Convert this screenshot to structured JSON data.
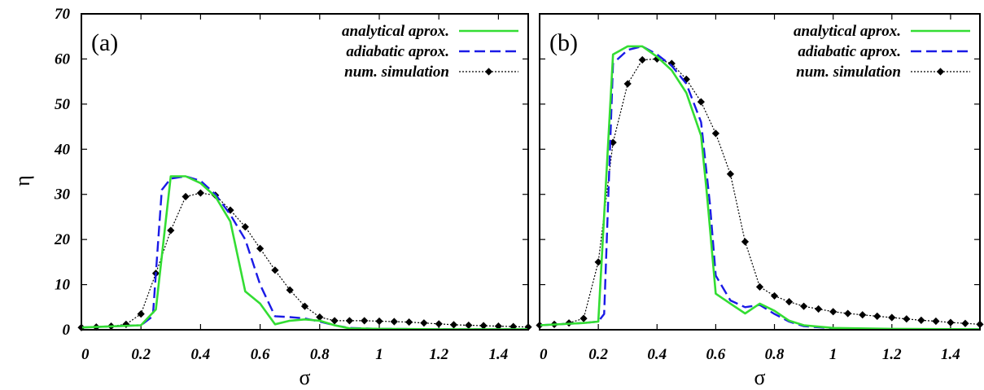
{
  "figure": {
    "ylabel": "η",
    "xlabel": "σ",
    "colors": {
      "analytical": "#33dd33",
      "adiabatic": "#1a1ae6",
      "simulation": "#000000"
    }
  },
  "chart_data": [
    {
      "type": "line",
      "panel_label": "(a)",
      "xlabel": "σ",
      "ylabel": "η",
      "xlim": [
        0,
        1.5
      ],
      "ylim": [
        0,
        70
      ],
      "x_ticks": [
        0,
        0.2,
        0.4,
        0.6,
        0.8,
        1,
        1.2,
        1.4
      ],
      "x_tick_labels": [
        "0",
        "0.2",
        "0.4",
        "0.6",
        "0.8",
        "1",
        "1.2",
        "1.4"
      ],
      "y_ticks": [
        0,
        10,
        20,
        30,
        40,
        50,
        60,
        70
      ],
      "y_tick_labels": [
        "0",
        "10",
        "20",
        "30",
        "40",
        "50",
        "60",
        "70"
      ],
      "grid": false,
      "legend_position": "top-right",
      "series": [
        {
          "name": "analytical aprox.",
          "style": "solid",
          "color": "#33dd33",
          "x": [
            0,
            0.2,
            0.25,
            0.3,
            0.35,
            0.4,
            0.45,
            0.5,
            0.55,
            0.6,
            0.65,
            0.7,
            0.75,
            0.8,
            0.85,
            0.9,
            1.0,
            1.2,
            1.5
          ],
          "y": [
            0.5,
            1.0,
            4.5,
            34.0,
            34.0,
            32.5,
            29.5,
            24.0,
            8.5,
            5.8,
            1.2,
            2.0,
            2.3,
            2.0,
            1.0,
            0.3,
            0.2,
            0.1,
            0.1
          ]
        },
        {
          "name": "adiabatic aprox.",
          "style": "dashed",
          "color": "#1a1ae6",
          "x": [
            0,
            0.2,
            0.24,
            0.27,
            0.3,
            0.35,
            0.4,
            0.45,
            0.5,
            0.55,
            0.6,
            0.65,
            0.7,
            0.75,
            0.8,
            0.85,
            0.9,
            1.0,
            1.2,
            1.5
          ],
          "y": [
            0.5,
            1.0,
            3.0,
            31.0,
            33.5,
            34.0,
            33.0,
            30.0,
            25.5,
            20.0,
            10.0,
            3.0,
            2.8,
            2.5,
            1.8,
            1.0,
            0.4,
            0.2,
            0.1,
            0.1
          ]
        },
        {
          "name": "num. simulation",
          "style": "dotted",
          "color": "#000000",
          "markers": "diamond",
          "x": [
            0,
            0.05,
            0.1,
            0.15,
            0.2,
            0.25,
            0.3,
            0.35,
            0.4,
            0.45,
            0.5,
            0.55,
            0.6,
            0.65,
            0.7,
            0.75,
            0.8,
            0.85,
            0.9,
            0.95,
            1.0,
            1.05,
            1.1,
            1.15,
            1.2,
            1.25,
            1.3,
            1.35,
            1.4,
            1.45,
            1.5
          ],
          "y": [
            0.5,
            0.6,
            0.8,
            1.2,
            3.5,
            12.5,
            22.0,
            29.5,
            30.3,
            29.8,
            26.5,
            22.8,
            18.0,
            13.2,
            8.8,
            5.2,
            2.8,
            2.0,
            2.0,
            2.0,
            1.9,
            1.8,
            1.7,
            1.5,
            1.3,
            1.1,
            1.0,
            0.9,
            0.8,
            0.7,
            0.6
          ]
        }
      ]
    },
    {
      "type": "line",
      "panel_label": "(b)",
      "xlabel": "σ",
      "ylabel": "η",
      "xlim": [
        0,
        1.5
      ],
      "ylim": [
        0,
        70
      ],
      "x_ticks": [
        0,
        0.2,
        0.4,
        0.6,
        0.8,
        1,
        1.2,
        1.4
      ],
      "x_tick_labels": [
        "0",
        "0.2",
        "0.4",
        "0.6",
        "0.8",
        "1",
        "1.2",
        "1.4"
      ],
      "y_ticks": [
        0,
        10,
        20,
        30,
        40,
        50,
        60,
        70
      ],
      "y_tick_labels": [
        "0",
        "10",
        "20",
        "30",
        "40",
        "50",
        "60",
        "70"
      ],
      "grid": false,
      "legend_position": "top-right",
      "series": [
        {
          "name": "analytical aprox.",
          "style": "solid",
          "color": "#33dd33",
          "x": [
            0,
            0.15,
            0.2,
            0.25,
            0.3,
            0.35,
            0.4,
            0.45,
            0.5,
            0.55,
            0.57,
            0.6,
            0.65,
            0.7,
            0.75,
            0.8,
            0.85,
            0.9,
            1.0,
            1.2,
            1.5
          ],
          "y": [
            1.0,
            1.5,
            1.8,
            61.0,
            62.8,
            62.8,
            60.5,
            57.5,
            52.5,
            43.0,
            30.0,
            8.0,
            5.8,
            3.6,
            5.8,
            4.2,
            2.0,
            1.0,
            0.4,
            0.2,
            0.1
          ]
        },
        {
          "name": "adiabatic aprox.",
          "style": "dashed",
          "color": "#1a1ae6",
          "x": [
            0,
            0.15,
            0.2,
            0.22,
            0.25,
            0.3,
            0.35,
            0.4,
            0.45,
            0.5,
            0.55,
            0.58,
            0.6,
            0.65,
            0.7,
            0.75,
            0.8,
            0.85,
            0.9,
            1.0,
            1.2,
            1.5
          ],
          "y": [
            1.0,
            1.5,
            1.8,
            3.5,
            59.0,
            62.0,
            62.8,
            61.0,
            58.5,
            54.5,
            46.0,
            28.0,
            12.0,
            6.5,
            5.0,
            5.5,
            3.5,
            1.8,
            0.8,
            0.3,
            0.1,
            0.1
          ]
        },
        {
          "name": "num. simulation",
          "style": "dotted",
          "color": "#000000",
          "markers": "diamond",
          "x": [
            0,
            0.05,
            0.1,
            0.15,
            0.2,
            0.25,
            0.3,
            0.35,
            0.4,
            0.45,
            0.5,
            0.55,
            0.6,
            0.65,
            0.7,
            0.75,
            0.8,
            0.85,
            0.9,
            0.95,
            1.0,
            1.05,
            1.1,
            1.15,
            1.2,
            1.25,
            1.3,
            1.35,
            1.4,
            1.45,
            1.5
          ],
          "y": [
            1.0,
            1.2,
            1.5,
            2.5,
            15.0,
            41.5,
            54.5,
            59.8,
            60.0,
            59.0,
            55.5,
            50.5,
            43.5,
            34.5,
            19.5,
            9.5,
            7.5,
            6.2,
            5.2,
            4.6,
            4.0,
            3.6,
            3.3,
            3.0,
            2.7,
            2.4,
            2.1,
            1.9,
            1.6,
            1.4,
            1.2
          ]
        }
      ]
    }
  ]
}
